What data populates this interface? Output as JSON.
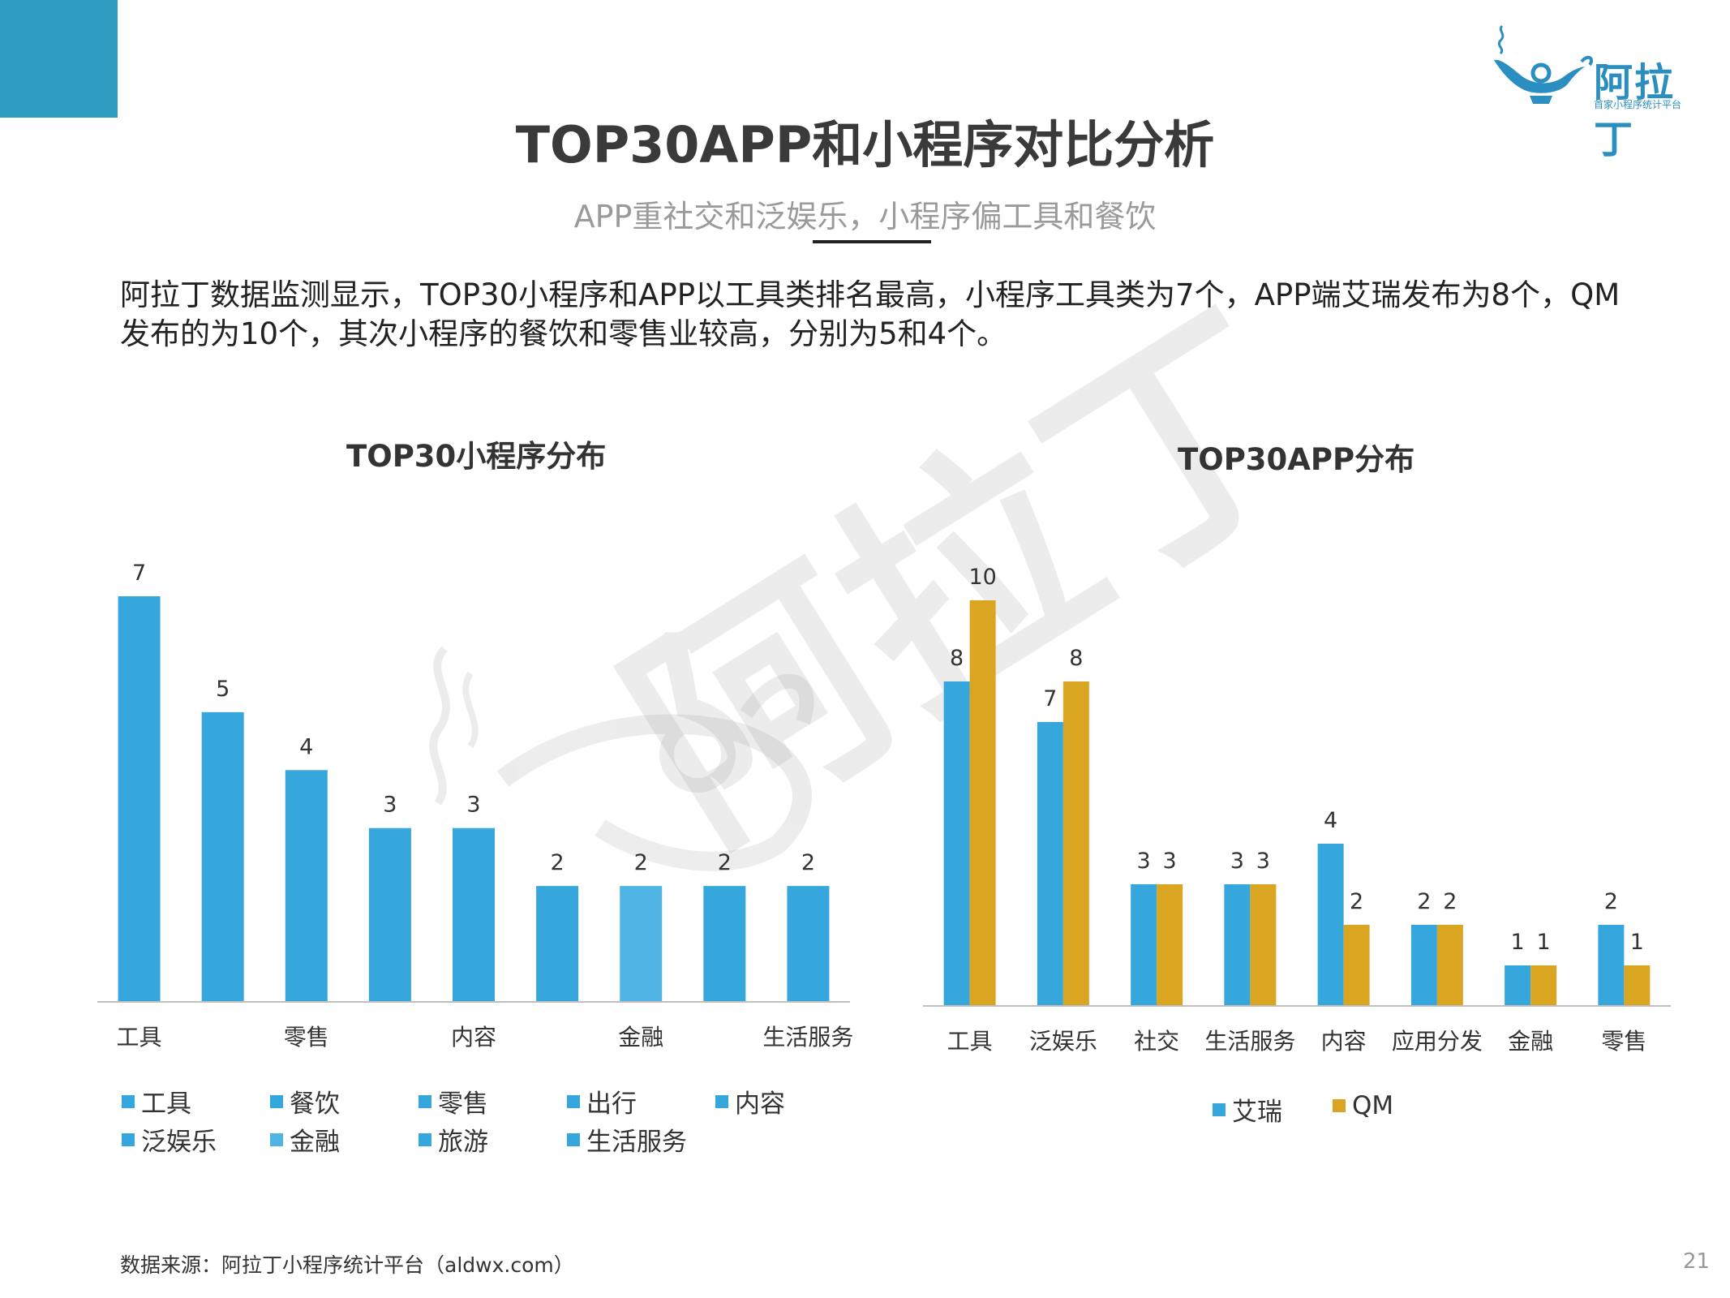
{
  "header": {
    "title": "TOP30APP和小程序对比分析",
    "subtitle": "APP重社交和泛娱乐，小程序偏工具和餐饮",
    "description": "阿拉丁数据监测显示，TOP30小程序和APP以工具类排名最高，小程序工具类为7个，APP端艾瑞发布为8个，QM发布的为10个，其次小程序的餐饮和零售业较高，分别为5和4个。"
  },
  "logo": {
    "name": "阿拉丁",
    "tagline": "首家小程序统计平台"
  },
  "watermark": {
    "text": "阿拉丁"
  },
  "footer": {
    "source": "数据来源：阿拉丁小程序统计平台（aldwx.com）",
    "page": "21"
  },
  "colors": {
    "accent": "#2e9dc1",
    "blue": "#35a7dc",
    "gold": "#daa520"
  },
  "chart_data": [
    {
      "type": "bar",
      "title": "TOP30小程序分布",
      "categories": [
        "工具",
        "餐饮",
        "零售",
        "出行",
        "内容",
        "泛娱乐",
        "金融",
        "旅游",
        "生活服务"
      ],
      "values": [
        7,
        5,
        4,
        3,
        3,
        2,
        2,
        2,
        2
      ],
      "bar_colors": [
        "#35a7dc",
        "#35a7dc",
        "#35a7dc",
        "#35a7dc",
        "#35a7dc",
        "#35a7dc",
        "#4fb3e3",
        "#35a7dc",
        "#35a7dc"
      ],
      "shown_tick_labels": [
        "工具",
        "",
        "零售",
        "",
        "内容",
        "",
        "金融",
        "",
        "生活服务"
      ],
      "ylim": [
        0,
        7
      ],
      "grid": false,
      "legend": "bottom"
    },
    {
      "type": "bar",
      "title": "TOP30APP分布",
      "categories": [
        "工具",
        "泛娱乐",
        "社交",
        "生活服务",
        "内容",
        "应用分发",
        "金融",
        "零售"
      ],
      "series": [
        {
          "name": "艾瑞",
          "color": "#35a7dc",
          "values": [
            8,
            7,
            3,
            3,
            4,
            2,
            1,
            2
          ]
        },
        {
          "name": "QM",
          "color": "#daa520",
          "values": [
            10,
            8,
            3,
            3,
            2,
            2,
            1,
            1
          ]
        }
      ],
      "ylim": [
        0,
        10
      ],
      "grid": false,
      "legend": "bottom"
    }
  ]
}
